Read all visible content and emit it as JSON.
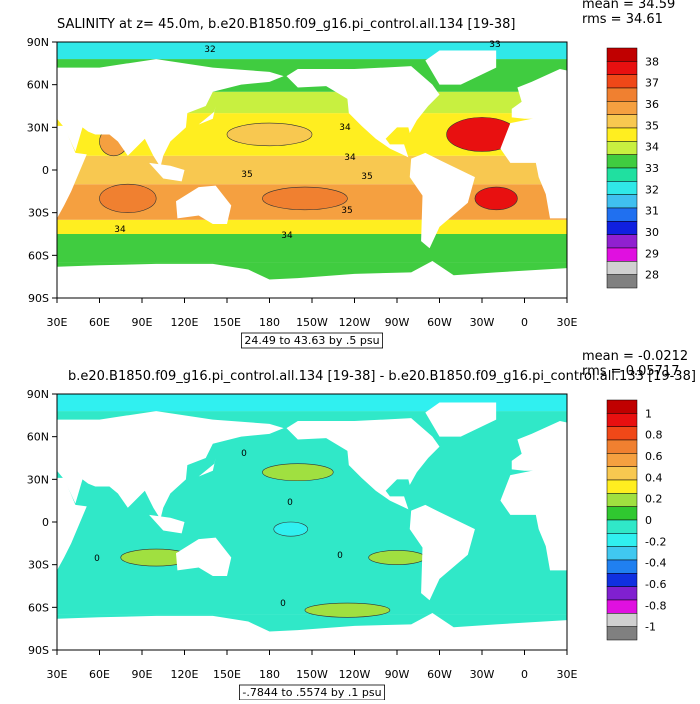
{
  "panels": [
    {
      "title": "SALINITY at z=  45.0m, b.e20.B1850.f09_g16.pi_control.all.134 [19-38]",
      "stats": [
        "mean = 34.59",
        "rms = 34.61"
      ],
      "lat_labels": [
        "90N",
        "60N",
        "30N",
        "0",
        "30S",
        "60S",
        "90S"
      ],
      "lon_labels": [
        "30E",
        "60E",
        "90E",
        "120E",
        "150E",
        "180",
        "150W",
        "120W",
        "90W",
        "60W",
        "30W",
        "0",
        "30E"
      ],
      "range_note": "24.49 to 43.63 by .5 psu",
      "colorbar": {
        "labels": [
          "38",
          "37",
          "36",
          "35",
          "34",
          "33",
          "32",
          "31",
          "30",
          "29",
          "28"
        ],
        "colors": [
          "#c00000",
          "#e81010",
          "#f04818",
          "#f08030",
          "#f5a040",
          "#f8c850",
          "#ffee20",
          "#c8f040",
          "#40cc40",
          "#20e0a0",
          "#30e8e8",
          "#40c0f0",
          "#2070f0",
          "#1020e0",
          "#9020d0",
          "#e010e0",
          "#d0d0d0",
          "#808080"
        ]
      },
      "contour_labels": [
        "32",
        "33",
        "34",
        "34",
        "35",
        "35",
        "35",
        "34",
        "34"
      ]
    },
    {
      "title": "b.e20.B1850.f09_g16.pi_control.all.134 [19-38] - b.e20.B1850.f09_g16.pi_control.all.133 [19-38]",
      "stats": [
        "mean = -0.0212",
        "rms = 0.05717"
      ],
      "lat_labels": [
        "90N",
        "60N",
        "30N",
        "0",
        "30S",
        "60S",
        "90S"
      ],
      "lon_labels": [
        "30E",
        "60E",
        "90E",
        "120E",
        "150E",
        "180",
        "150W",
        "120W",
        "90W",
        "60W",
        "30W",
        "0",
        "30E"
      ],
      "range_note": "-.7844 to .5574 by .1 psu",
      "colorbar": {
        "labels": [
          "1",
          "0.8",
          "0.6",
          "0.4",
          "0.2",
          "0",
          "-0.2",
          "-0.4",
          "-0.6",
          "-0.8",
          "-1"
        ],
        "colors": [
          "#c00000",
          "#e81010",
          "#f04818",
          "#f08030",
          "#f5a040",
          "#f8c850",
          "#ffee20",
          "#a0e040",
          "#30c830",
          "#30e8c8",
          "#30f0f0",
          "#40c8f0",
          "#2080f0",
          "#1030e0",
          "#8020d0",
          "#e010e0",
          "#d0d0d0",
          "#808080"
        ]
      },
      "contour_labels": [
        "0",
        "0",
        "0",
        "0",
        "0"
      ]
    }
  ]
}
